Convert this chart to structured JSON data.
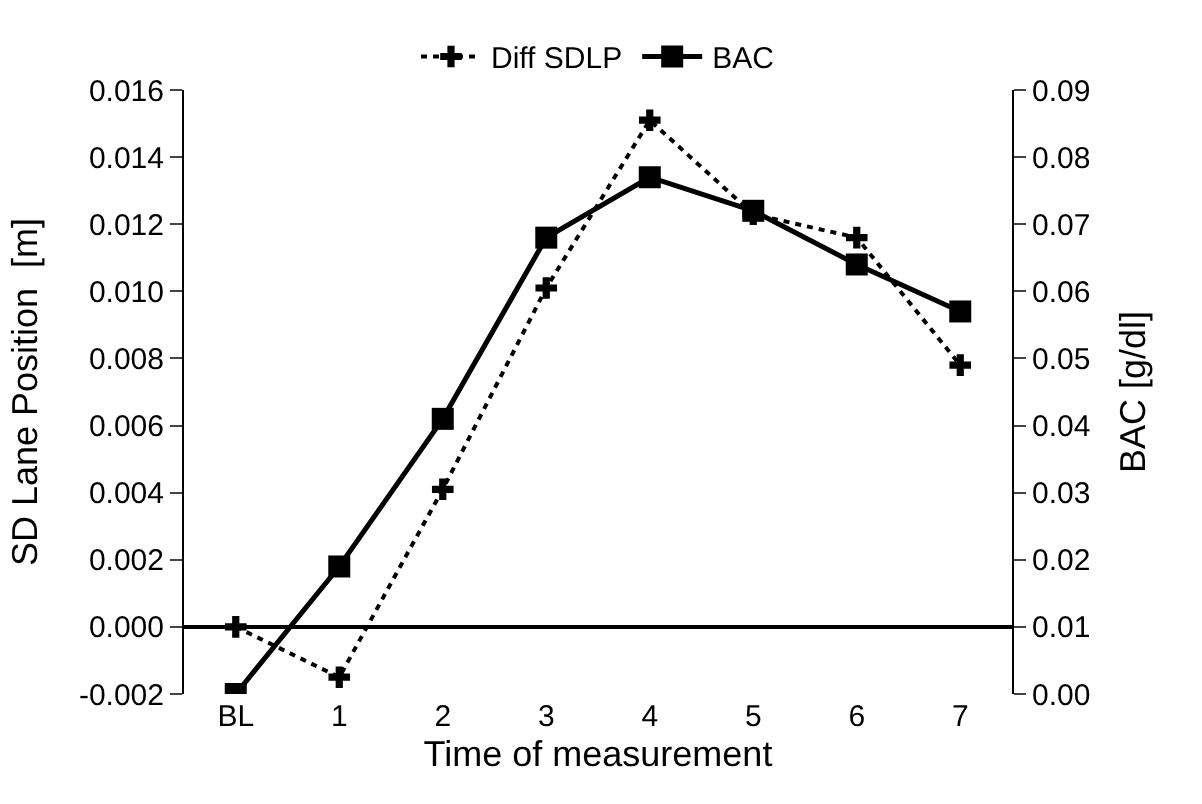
{
  "chart_data": {
    "type": "line",
    "xlabel": "Time of measurement",
    "ylabel": "SD Lane Position  [m]",
    "y2label": "BAC [g/dl]",
    "categories": [
      "BL",
      "1",
      "2",
      "3",
      "4",
      "5",
      "6",
      "7"
    ],
    "series": [
      {
        "name": "Diff SDLP",
        "color": "#000000",
        "marker": "cross",
        "line_style": "dotted",
        "values": [
          0.0,
          -0.0015,
          0.0041,
          0.0101,
          0.0151,
          0.0123,
          0.0116,
          0.0078
        ]
      },
      {
        "name": "BAC",
        "color": "#000000",
        "marker": "square",
        "line_style": "solid",
        "axis": "y2",
        "values": [
          0.0,
          0.019,
          0.041,
          0.068,
          0.077,
          0.072,
          0.064,
          0.057
        ]
      }
    ],
    "ylim": [
      -0.002,
      0.016
    ],
    "yticks": [
      {
        "value": -0.002,
        "label": "-0.002"
      },
      {
        "value": 0,
        "label": "0.000"
      },
      {
        "value": 0.002,
        "label": "0.002"
      },
      {
        "value": 0.004,
        "label": "0.004"
      },
      {
        "value": 0.006,
        "label": "0.006"
      },
      {
        "value": 0.008,
        "label": "0.008"
      },
      {
        "value": 0.01,
        "label": "0.010"
      },
      {
        "value": 0.012,
        "label": "0.012"
      },
      {
        "value": 0.014,
        "label": "0.014"
      },
      {
        "value": 0.016,
        "label": "0.016"
      }
    ],
    "y2lim": [
      0,
      0.09
    ],
    "y2ticks": [
      {
        "value": 0,
        "label": "0.00"
      },
      {
        "value": 0.01,
        "label": "0.01"
      },
      {
        "value": 0.02,
        "label": "0.02"
      },
      {
        "value": 0.03,
        "label": "0.03"
      },
      {
        "value": 0.04,
        "label": "0.04"
      },
      {
        "value": 0.05,
        "label": "0.05"
      },
      {
        "value": 0.06,
        "label": "0.06"
      },
      {
        "value": 0.07,
        "label": "0.07"
      },
      {
        "value": 0.08,
        "label": "0.08"
      },
      {
        "value": 0.09,
        "label": "0.09"
      }
    ],
    "legend": "top"
  }
}
